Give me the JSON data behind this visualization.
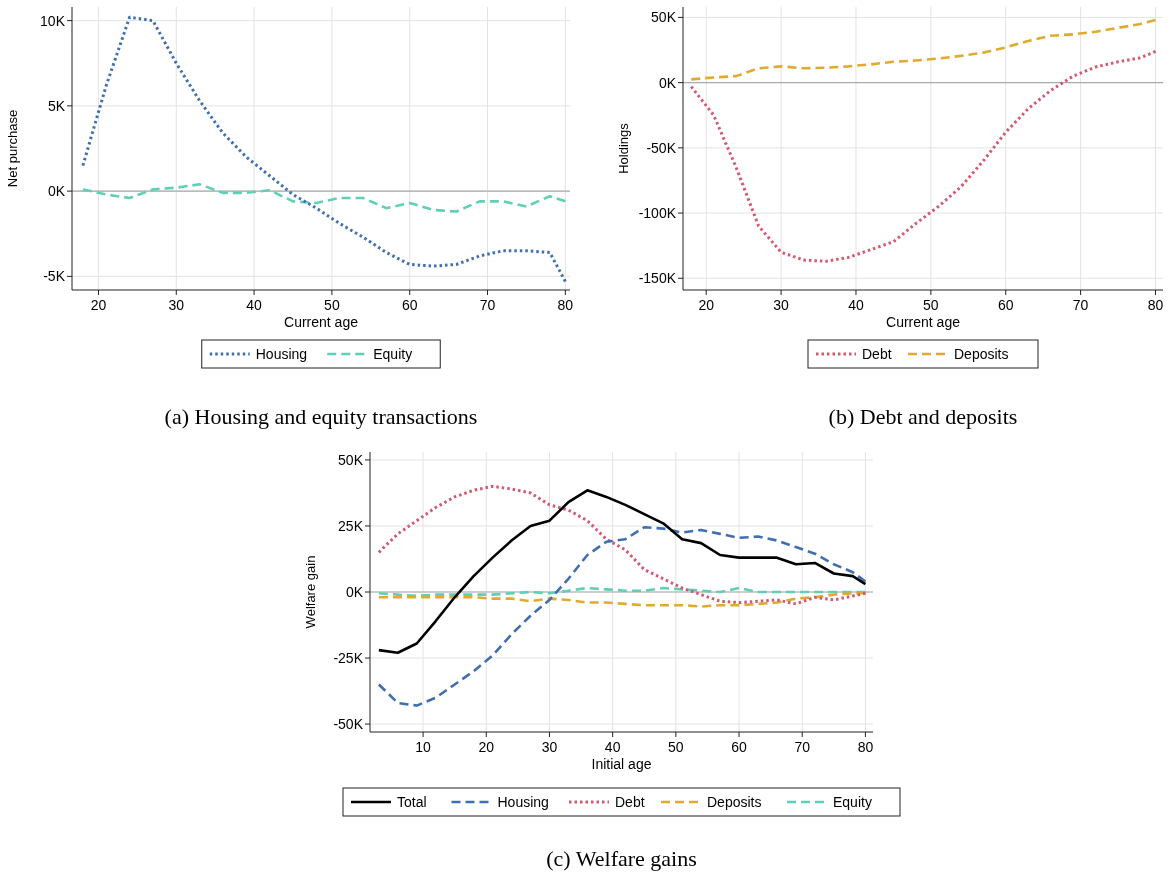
{
  "chart_data": [
    {
      "type": "line",
      "title": "(a) Housing and equity transactions",
      "xlabel": "Current age",
      "ylabel": "Net purchase",
      "xlim": [
        16.6,
        80.6
      ],
      "ylim": [
        -5800,
        10800
      ],
      "xticks": [
        20,
        30,
        40,
        50,
        60,
        70,
        80
      ],
      "yticks": [
        {
          "value": -5000,
          "label": "-5K"
        },
        {
          "value": 0,
          "label": "0K"
        },
        {
          "value": 5000,
          "label": "5K"
        },
        {
          "value": 10000,
          "label": "10K"
        }
      ],
      "grid": true,
      "legend": "bottom",
      "ref_lines": [
        {
          "axis": "y",
          "value": 0,
          "color": "#aaaaaa"
        }
      ],
      "x": [
        18,
        21,
        24,
        27,
        30,
        33,
        36,
        39,
        42,
        45,
        48,
        51,
        54,
        57,
        60,
        63,
        66,
        69,
        72,
        75,
        78,
        80
      ],
      "series": [
        {
          "name": "Housing",
          "color": "#3f6fb0",
          "line_style": "dotted",
          "values": [
            1500,
            6200,
            10200,
            10000,
            7500,
            5300,
            3400,
            2000,
            900,
            -200,
            -1000,
            -1900,
            -2700,
            -3600,
            -4300,
            -4400,
            -4300,
            -3800,
            -3500,
            -3500,
            -3600,
            -5300
          ]
        },
        {
          "name": "Equity",
          "color": "#5fcfb5",
          "line_style": "dashed",
          "values": [
            100,
            -200,
            -400,
            100,
            200,
            400,
            -100,
            -100,
            50,
            -600,
            -700,
            -400,
            -400,
            -1000,
            -700,
            -1100,
            -1200,
            -600,
            -600,
            -900,
            -300,
            -600
          ]
        }
      ]
    },
    {
      "type": "line",
      "title": "(b) Debt and deposits",
      "xlabel": "Current age",
      "ylabel": "Holdings",
      "xlim": [
        16.9,
        81
      ],
      "ylim": [
        -159000,
        58000
      ],
      "xticks": [
        20,
        30,
        40,
        50,
        60,
        70,
        80
      ],
      "yticks": [
        {
          "value": -150000,
          "label": "-150K"
        },
        {
          "value": -100000,
          "label": "-100K"
        },
        {
          "value": -50000,
          "label": "-50K"
        },
        {
          "value": 0,
          "label": "0K"
        },
        {
          "value": 50000,
          "label": "50K"
        }
      ],
      "grid": true,
      "legend": "bottom",
      "ref_lines": [
        {
          "axis": "y",
          "value": 0,
          "color": "#aaaaaa"
        }
      ],
      "x": [
        18,
        21,
        24,
        27,
        30,
        33,
        36,
        39,
        42,
        45,
        48,
        51,
        54,
        57,
        60,
        63,
        66,
        69,
        72,
        75,
        78,
        80
      ],
      "series": [
        {
          "name": "Debt",
          "color": "#d2596f",
          "line_style": "dotted",
          "values": [
            -3000,
            -25000,
            -65000,
            -110000,
            -130000,
            -136000,
            -137000,
            -134000,
            -128000,
            -122000,
            -108000,
            -95000,
            -80000,
            -60000,
            -38000,
            -20000,
            -6000,
            5000,
            12000,
            16000,
            19000,
            24000
          ]
        },
        {
          "name": "Deposits",
          "color": "#e0aa30",
          "line_style": "dashed",
          "values": [
            2500,
            4000,
            5000,
            11000,
            12500,
            11000,
            11500,
            12500,
            14000,
            16000,
            17000,
            18500,
            20500,
            23000,
            27000,
            32000,
            36000,
            37000,
            39000,
            42000,
            45000,
            48000
          ]
        }
      ]
    },
    {
      "type": "line",
      "title": "(c) Welfare gains",
      "xlabel": "Initial age",
      "ylabel": "Welfare gain",
      "xlim": [
        1.6,
        81.2
      ],
      "ylim": [
        -53000,
        53000
      ],
      "xticks": [
        10,
        20,
        30,
        40,
        50,
        60,
        70,
        80
      ],
      "yticks": [
        {
          "value": -50000,
          "label": "-50K"
        },
        {
          "value": -25000,
          "label": "-25K"
        },
        {
          "value": 0,
          "label": "0K"
        },
        {
          "value": 25000,
          "label": "25K"
        },
        {
          "value": 50000,
          "label": "50K"
        }
      ],
      "grid": true,
      "legend": "bottom",
      "ref_lines": [
        {
          "axis": "y",
          "value": 0,
          "color": "#aaaaaa"
        }
      ],
      "x": [
        3,
        6,
        9,
        12,
        15,
        18,
        21,
        24,
        27,
        30,
        33,
        36,
        39,
        42,
        45,
        48,
        51,
        54,
        57,
        60,
        63,
        66,
        69,
        72,
        75,
        78,
        80
      ],
      "series": [
        {
          "name": "Total",
          "color": "#000000",
          "line_style": "solid",
          "values": [
            -22000,
            -23000,
            -19500,
            -11000,
            -2000,
            6000,
            13000,
            19500,
            25000,
            27000,
            34000,
            38500,
            36000,
            33000,
            29500,
            26000,
            20000,
            18500,
            14000,
            13000,
            13000,
            13000,
            10500,
            11000,
            7000,
            6000,
            3000
          ]
        },
        {
          "name": "Housing",
          "color": "#3f6fb0",
          "line_style": "dashed",
          "values": [
            -35000,
            -42000,
            -43000,
            -40000,
            -35000,
            -30000,
            -24000,
            -16000,
            -9000,
            -3000,
            5000,
            14000,
            19000,
            20000,
            24500,
            24000,
            22500,
            23500,
            22000,
            20500,
            21000,
            19500,
            17000,
            14500,
            10500,
            7500,
            4000
          ]
        },
        {
          "name": "Debt",
          "color": "#d2596f",
          "line_style": "dotted",
          "values": [
            15000,
            22000,
            27000,
            32000,
            36000,
            38500,
            40000,
            39000,
            37500,
            33000,
            31000,
            27000,
            20000,
            16000,
            8500,
            5000,
            1500,
            -1000,
            -3500,
            -4000,
            -3500,
            -3000,
            -4500,
            -2000,
            -3000,
            -1500,
            -500
          ]
        },
        {
          "name": "Deposits",
          "color": "#e0aa30",
          "line_style": "dashed",
          "values": [
            -2000,
            -2000,
            -2000,
            -2000,
            -2000,
            -2000,
            -2500,
            -2500,
            -3500,
            -2500,
            -3000,
            -4000,
            -4000,
            -4500,
            -5000,
            -5000,
            -5000,
            -5500,
            -5000,
            -5000,
            -4500,
            -4000,
            -2500,
            -2000,
            -1000,
            -500,
            -500
          ]
        },
        {
          "name": "Equity",
          "color": "#5fcfb5",
          "line_style": "dashed",
          "values": [
            -500,
            -1000,
            -1500,
            -1000,
            -1000,
            -1000,
            -1000,
            -500,
            0,
            -500,
            500,
            1500,
            1000,
            500,
            500,
            1500,
            1000,
            500,
            0,
            1500,
            0,
            0,
            0,
            0,
            0,
            0,
            0
          ]
        }
      ]
    }
  ]
}
